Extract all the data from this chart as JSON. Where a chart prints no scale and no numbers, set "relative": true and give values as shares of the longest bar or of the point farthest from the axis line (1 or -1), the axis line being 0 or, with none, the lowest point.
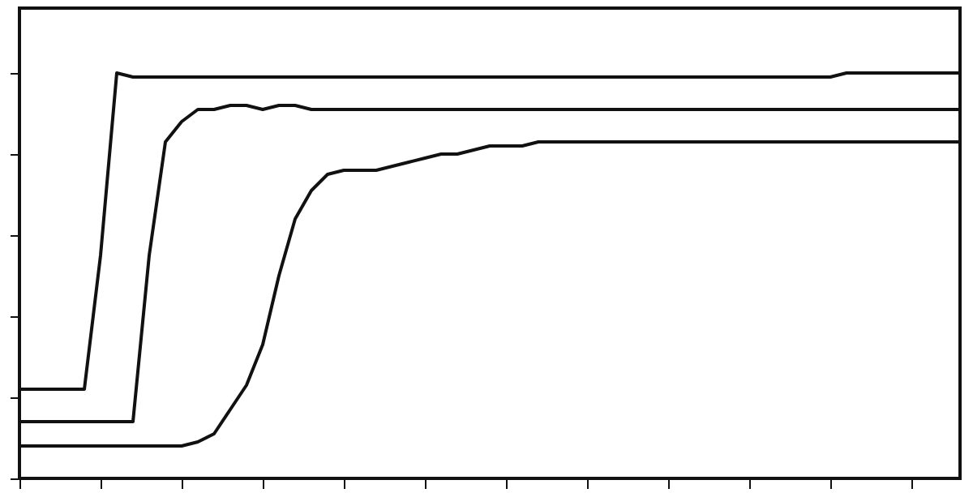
{
  "chart_data": {
    "type": "line",
    "relative": true,
    "legend": false,
    "grid": false,
    "line_style": "solid",
    "marker": "none",
    "categories": [
      null,
      null,
      null,
      null,
      null,
      null,
      null,
      null,
      null,
      null,
      null,
      null,
      null,
      null,
      null,
      null,
      null,
      null,
      null,
      null,
      null,
      null,
      null,
      null,
      null,
      null,
      null,
      null,
      null,
      null,
      null,
      null,
      null,
      null,
      null,
      null,
      null,
      null,
      null,
      null,
      null,
      null,
      null,
      null,
      null,
      null,
      null,
      null,
      null,
      null,
      null,
      null,
      null,
      null,
      null,
      null,
      null,
      null,
      null
    ],
    "series": [
      {
        "color": "#111111",
        "values": [
          0.22,
          0.22,
          0.22,
          0.22,
          0.22,
          0.55,
          1.0,
          0.99,
          0.99,
          0.99,
          0.99,
          0.99,
          0.99,
          0.99,
          0.99,
          0.99,
          0.99,
          0.99,
          0.99,
          0.99,
          0.99,
          0.99,
          0.99,
          0.99,
          0.99,
          0.99,
          0.99,
          0.99,
          0.99,
          0.99,
          0.99,
          0.99,
          0.99,
          0.99,
          0.99,
          0.99,
          0.99,
          0.99,
          0.99,
          0.99,
          0.99,
          0.99,
          0.99,
          0.99,
          0.99,
          0.99,
          0.99,
          0.99,
          0.99,
          0.99,
          0.99,
          1.0,
          1.0,
          1.0,
          1.0,
          1.0,
          1.0,
          1.0,
          1.0
        ]
      },
      {
        "color": "#111111",
        "values": [
          0.14,
          0.14,
          0.14,
          0.14,
          0.14,
          0.14,
          0.14,
          0.14,
          0.55,
          0.83,
          0.88,
          0.91,
          0.91,
          0.92,
          0.92,
          0.91,
          0.92,
          0.92,
          0.91,
          0.91,
          0.91,
          0.91,
          0.91,
          0.91,
          0.91,
          0.91,
          0.91,
          0.91,
          0.91,
          0.91,
          0.91,
          0.91,
          0.91,
          0.91,
          0.91,
          0.91,
          0.91,
          0.91,
          0.91,
          0.91,
          0.91,
          0.91,
          0.91,
          0.91,
          0.91,
          0.91,
          0.91,
          0.91,
          0.91,
          0.91,
          0.91,
          0.91,
          0.91,
          0.91,
          0.91,
          0.91,
          0.91,
          0.91,
          0.91
        ]
      },
      {
        "color": "#111111",
        "values": [
          0.08,
          0.08,
          0.08,
          0.08,
          0.08,
          0.08,
          0.08,
          0.08,
          0.08,
          0.08,
          0.08,
          0.09,
          0.11,
          0.17,
          0.23,
          0.33,
          0.5,
          0.64,
          0.71,
          0.75,
          0.76,
          0.76,
          0.76,
          0.77,
          0.78,
          0.79,
          0.8,
          0.8,
          0.81,
          0.82,
          0.82,
          0.82,
          0.83,
          0.83,
          0.83,
          0.83,
          0.83,
          0.83,
          0.83,
          0.83,
          0.83,
          0.83,
          0.83,
          0.83,
          0.83,
          0.83,
          0.83,
          0.83,
          0.83,
          0.83,
          0.83,
          0.83,
          0.83,
          0.83,
          0.83,
          0.83,
          0.83,
          0.83,
          0.83
        ]
      }
    ]
  }
}
